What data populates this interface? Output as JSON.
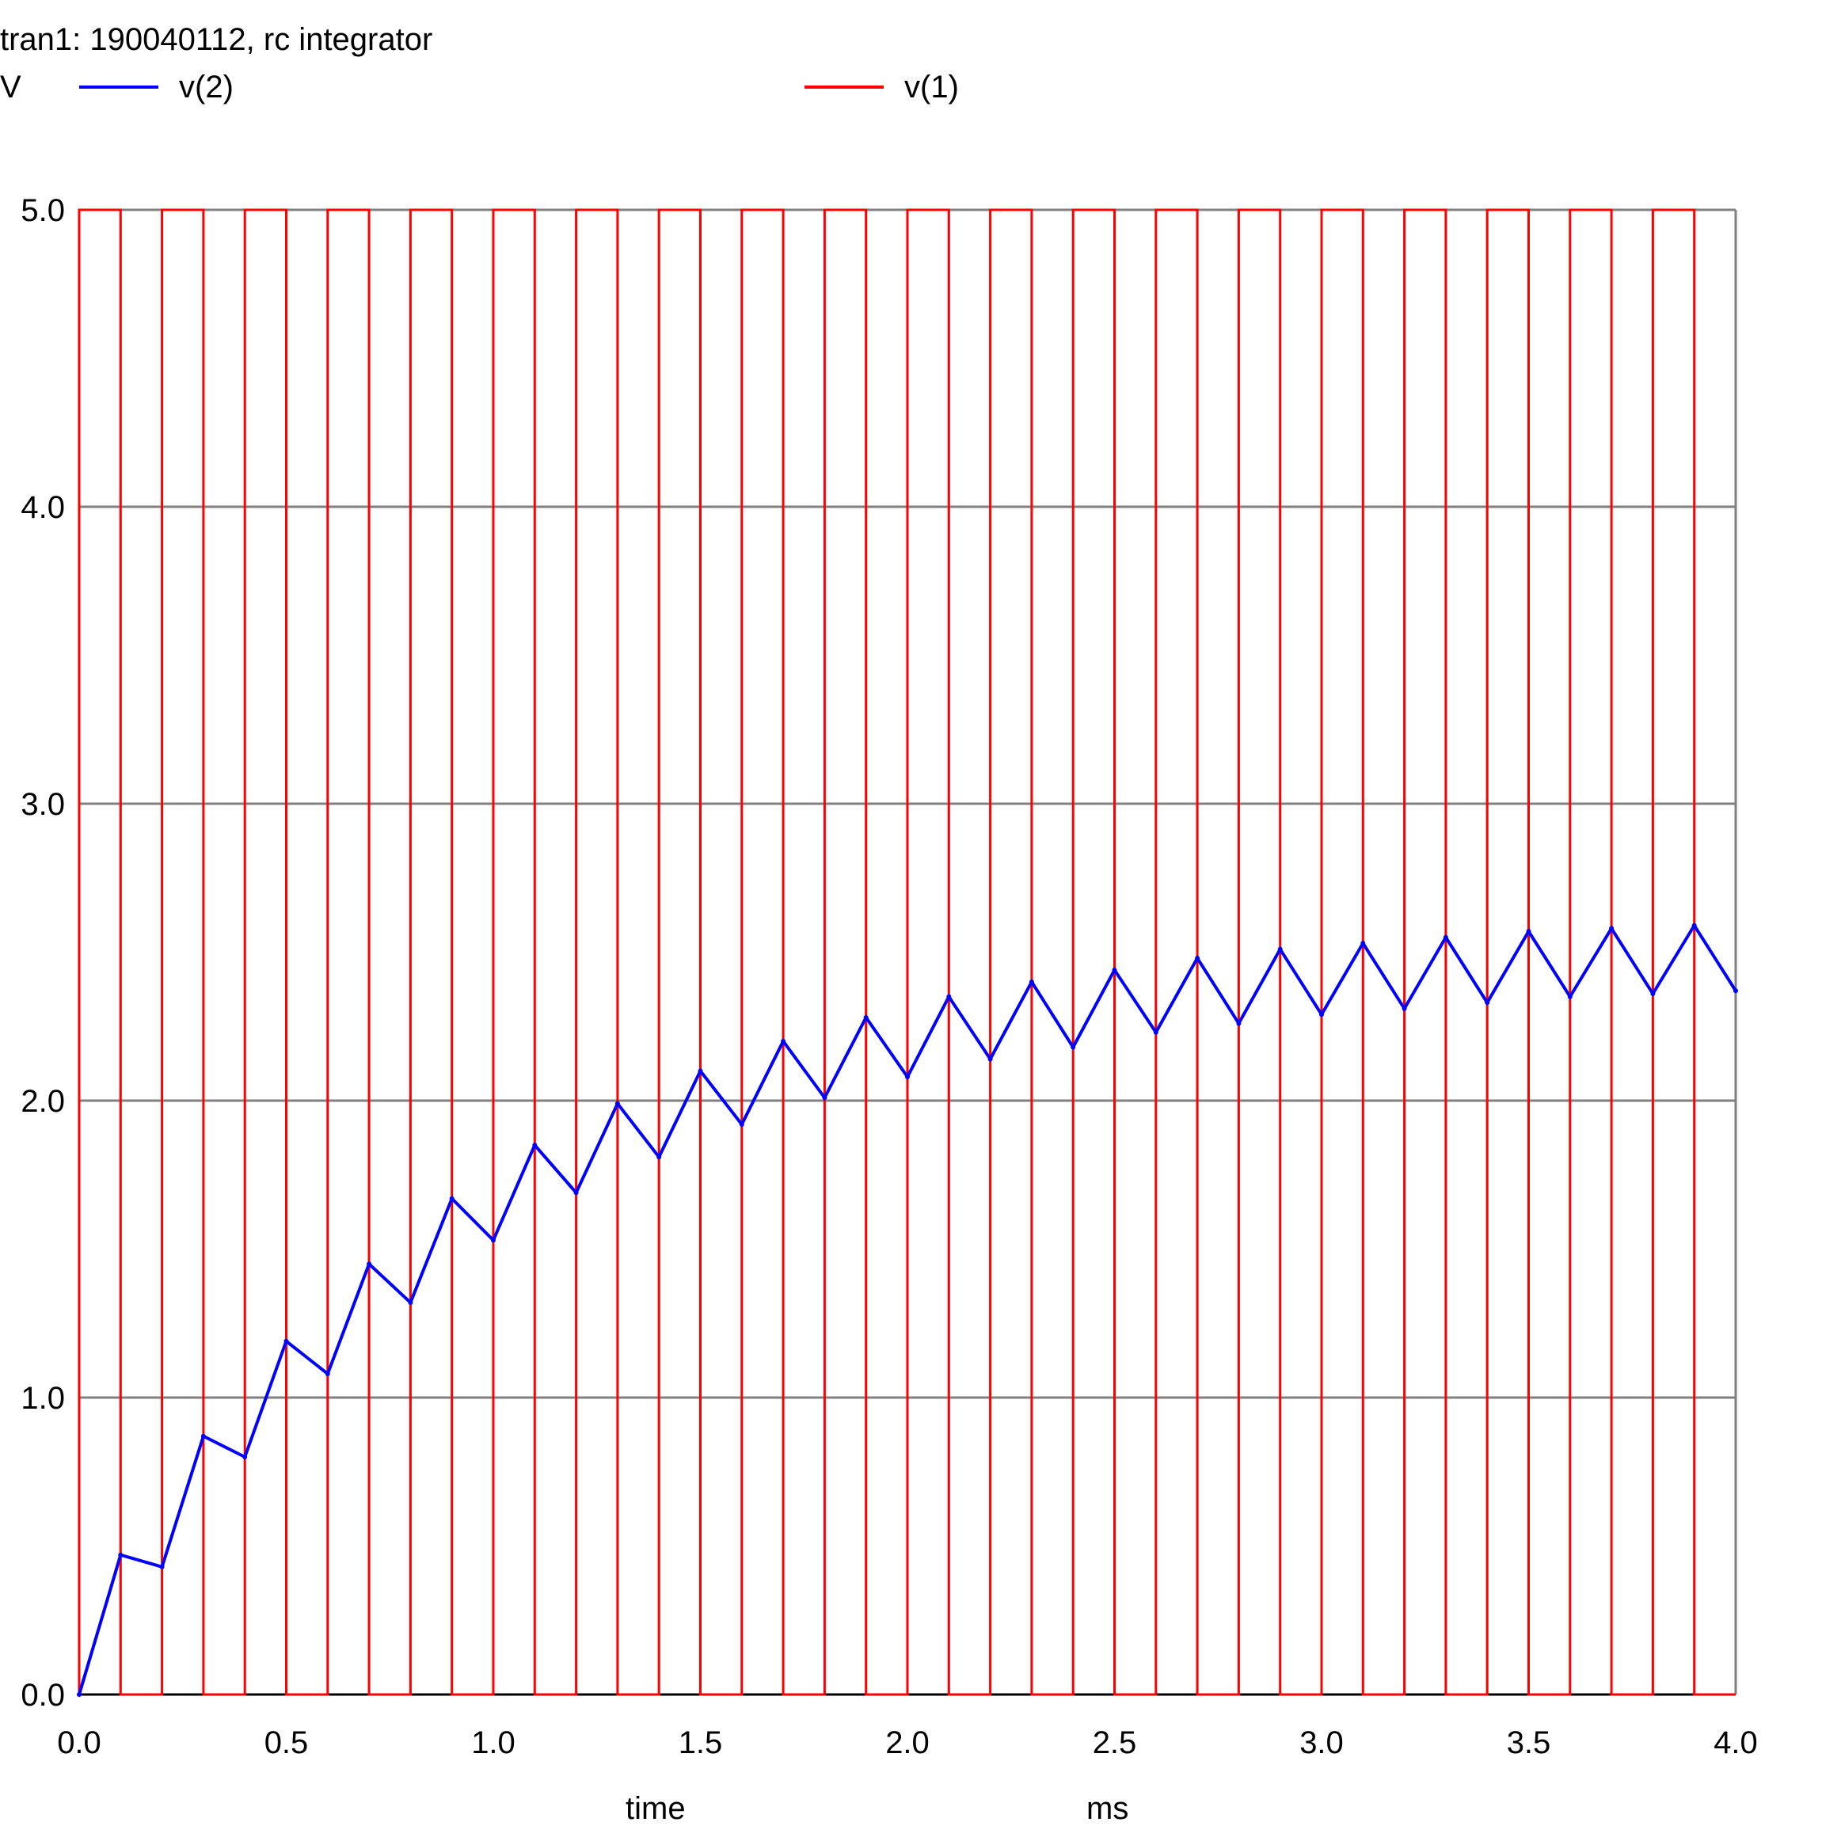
{
  "title": "tran1: 190040112, rc integrator",
  "colors": {
    "v2": "#0000ff",
    "v1": "#ff0000",
    "grid": "#808080",
    "axis": "#000000"
  },
  "chart_data": {
    "type": "line",
    "title": "tran1: 190040112, rc integrator",
    "ylabel": "V",
    "xlabel": "time",
    "xunit": "ms",
    "xlim": [
      0.0,
      4.0
    ],
    "ylim": [
      0.0,
      5.0
    ],
    "xticks": [
      "0.0",
      "0.5",
      "1.0",
      "1.5",
      "2.0",
      "2.5",
      "3.0",
      "3.5",
      "4.0"
    ],
    "yticks": [
      "0.0",
      "1.0",
      "2.0",
      "3.0",
      "4.0",
      "5.0"
    ],
    "grid": true,
    "legend": "top",
    "square_wave": {
      "rise_times": [
        0.0,
        0.2,
        0.4,
        0.6,
        0.8,
        1.0,
        1.2,
        1.4,
        1.6,
        1.8,
        2.0,
        2.2,
        2.4,
        2.6,
        2.8,
        3.0,
        3.2,
        3.4,
        3.6,
        3.8
      ],
      "high_duration": 0.1,
      "low": 0.0,
      "high": 5.0
    },
    "series": [
      {
        "name": "v(2)",
        "color": "#0000ff",
        "x": [
          0.0,
          0.1,
          0.2,
          0.3,
          0.4,
          0.5,
          0.6,
          0.7,
          0.8,
          0.9,
          1.0,
          1.1,
          1.2,
          1.3,
          1.4,
          1.5,
          1.6,
          1.7,
          1.8,
          1.9,
          2.0,
          2.1,
          2.2,
          2.3,
          2.4,
          2.5,
          2.6,
          2.7,
          2.8,
          2.9,
          3.0,
          3.1,
          3.2,
          3.3,
          3.4,
          3.5,
          3.6,
          3.7,
          3.8,
          3.9,
          4.0
        ],
        "y": [
          0.0,
          0.47,
          0.43,
          0.87,
          0.8,
          1.19,
          1.08,
          1.45,
          1.32,
          1.67,
          1.53,
          1.85,
          1.69,
          1.99,
          1.81,
          2.1,
          1.92,
          2.2,
          2.01,
          2.28,
          2.08,
          2.35,
          2.14,
          2.4,
          2.18,
          2.44,
          2.23,
          2.48,
          2.26,
          2.51,
          2.29,
          2.53,
          2.31,
          2.55,
          2.33,
          2.57,
          2.35,
          2.58,
          2.36,
          2.59,
          2.37
        ]
      },
      {
        "name": "v(1)",
        "color": "#ff0000"
      }
    ]
  }
}
